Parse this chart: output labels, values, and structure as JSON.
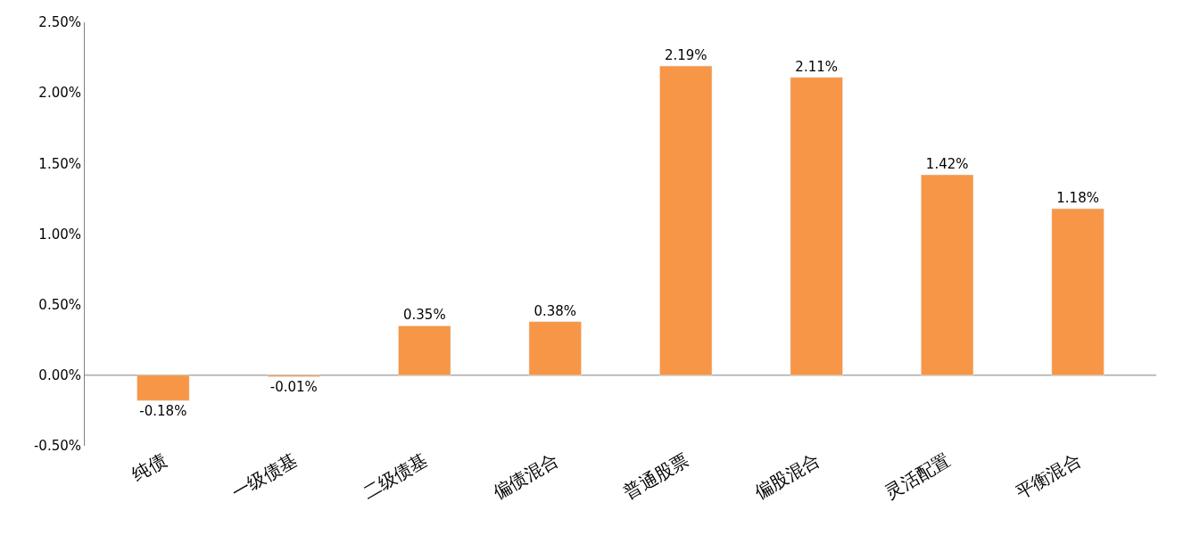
{
  "chart_data": {
    "type": "bar",
    "categories": [
      "纯债",
      "一级债基",
      "二级债基",
      "偏债混合",
      "普通股票",
      "偏股混合",
      "灵活配置",
      "平衡混合"
    ],
    "values": [
      -0.18,
      -0.01,
      0.35,
      0.38,
      2.19,
      2.11,
      1.42,
      1.18
    ],
    "value_labels": [
      "-0.18%",
      "-0.01%",
      "0.35%",
      "0.38%",
      "2.19%",
      "2.11%",
      "1.42%",
      "1.18%"
    ],
    "color": "#f79646",
    "ylim": [
      -0.5,
      2.5
    ],
    "yticks": [
      {
        "value": -0.5,
        "label": "-0.50%"
      },
      {
        "value": 0,
        "label": "0.00%"
      },
      {
        "value": 0.5,
        "label": "0.50%"
      },
      {
        "value": 1,
        "label": "1.00%"
      },
      {
        "value": 1.5,
        "label": "1.50%"
      },
      {
        "value": 2,
        "label": "2.00%"
      },
      {
        "value": 2.5,
        "label": "2.50%"
      }
    ],
    "legend": false
  }
}
